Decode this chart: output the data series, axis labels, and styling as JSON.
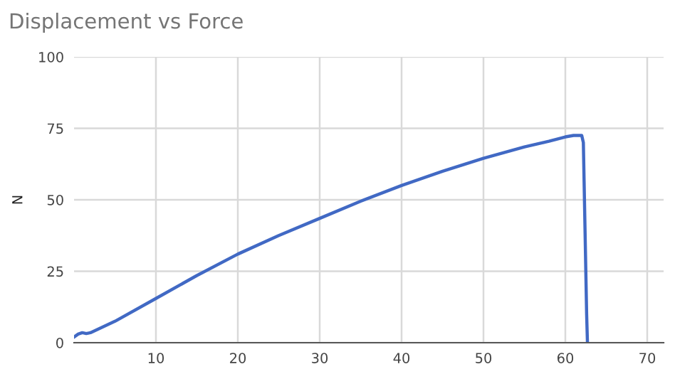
{
  "chart_data": {
    "type": "line",
    "title": "Displacement vs Force",
    "ylabel": "N",
    "x": [
      0,
      0.5,
      1,
      1.5,
      2,
      5,
      10,
      15,
      20,
      25,
      30,
      35,
      40,
      45,
      50,
      55,
      58,
      60,
      61,
      62,
      62.2,
      62.4,
      62.6,
      62.7
    ],
    "series": [
      {
        "color": "#4169c4",
        "values": [
          2,
          3,
          3.5,
          3.2,
          3.5,
          7.5,
          15.5,
          23.5,
          31,
          37.5,
          43.5,
          49.5,
          55,
          60,
          64.5,
          68.5,
          70.5,
          72,
          72.5,
          72.5,
          70,
          40,
          10,
          0
        ]
      }
    ],
    "xlim": [
      0,
      72
    ],
    "xticks": [
      10,
      20,
      30,
      40,
      50,
      60,
      70
    ],
    "ylim": [
      0,
      100
    ],
    "yticks": [
      0,
      25,
      50,
      75,
      100
    ],
    "grid": true,
    "marker": "none",
    "line_style": "solid"
  }
}
